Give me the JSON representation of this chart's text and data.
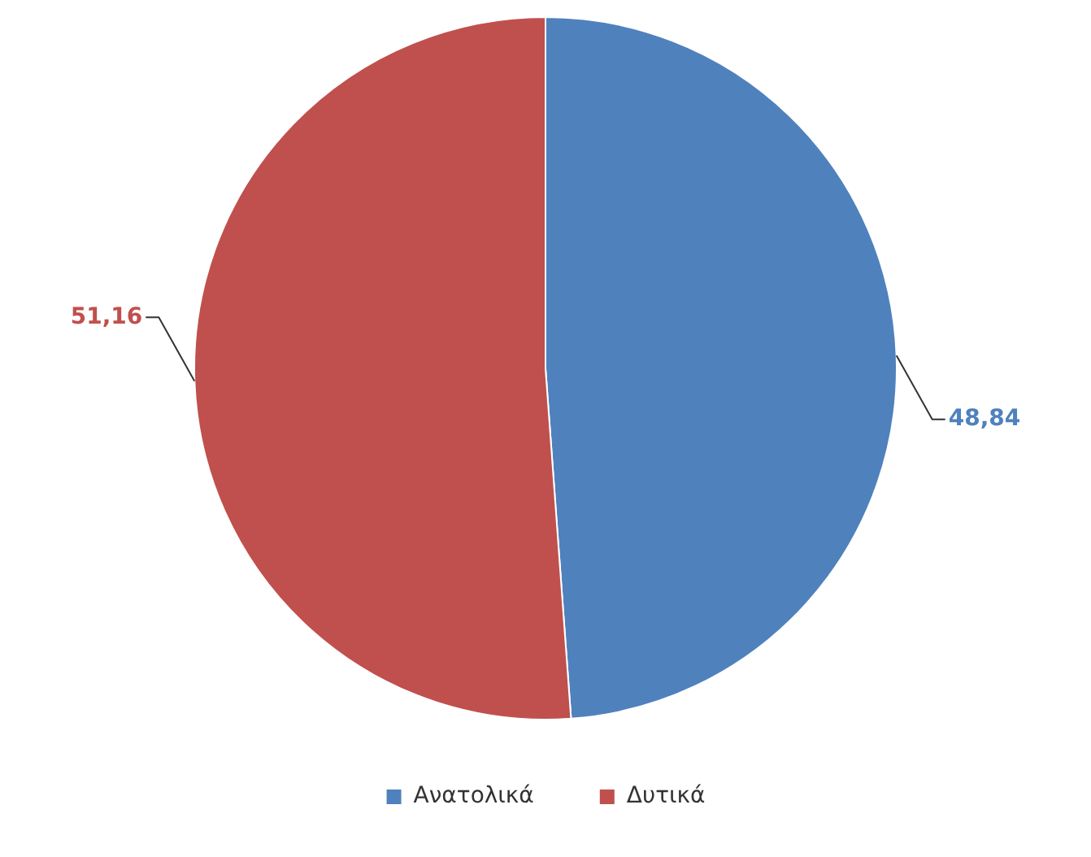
{
  "chart_data": {
    "type": "pie",
    "categories": [
      "Ανατολικά",
      "Δυτικά"
    ],
    "values": [
      48.84,
      51.16
    ],
    "colors": [
      "#4f81bd",
      "#c0504d"
    ],
    "value_labels": [
      "48,84",
      "51,16"
    ],
    "legend": "bottom"
  }
}
